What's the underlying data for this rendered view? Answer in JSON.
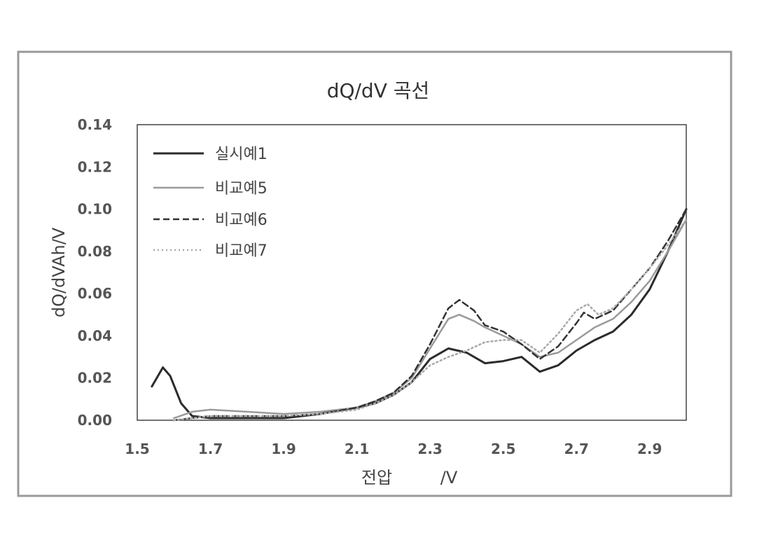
{
  "chart_data": {
    "type": "line",
    "title": "dQ/dV 곡선",
    "xlabel": "전압",
    "xunit": "/V",
    "ylabel": "dQ/dVAh/V",
    "xlim": [
      1.5,
      3.0
    ],
    "ylim": [
      0,
      0.14
    ],
    "xticks": [
      "1.5",
      "1.7",
      "1.9",
      "2.1",
      "2.3",
      "2.5",
      "2.7",
      "2.9"
    ],
    "yticks": [
      "0.00",
      "0.02",
      "0.04",
      "0.06",
      "0.08",
      "0.10",
      "0.12",
      "0.14"
    ],
    "grid": false,
    "legend_position": "top-left",
    "series": [
      {
        "name": "실시예1",
        "color": "#2b2b2b",
        "style": "solid",
        "x": [
          1.54,
          1.57,
          1.59,
          1.62,
          1.65,
          1.7,
          1.8,
          1.9,
          2.0,
          2.1,
          2.15,
          2.2,
          2.25,
          2.3,
          2.35,
          2.4,
          2.45,
          2.5,
          2.55,
          2.6,
          2.65,
          2.7,
          2.75,
          2.8,
          2.85,
          2.9,
          2.95,
          3.0
        ],
        "y": [
          0.016,
          0.025,
          0.021,
          0.008,
          0.002,
          0.001,
          0.001,
          0.001,
          0.003,
          0.006,
          0.008,
          0.012,
          0.018,
          0.029,
          0.034,
          0.032,
          0.027,
          0.028,
          0.03,
          0.023,
          0.026,
          0.033,
          0.038,
          0.042,
          0.05,
          0.062,
          0.08,
          0.1
        ]
      },
      {
        "name": "비교예5",
        "color": "#9a9a9a",
        "style": "solid",
        "x": [
          1.6,
          1.65,
          1.7,
          1.8,
          1.9,
          2.0,
          2.1,
          2.15,
          2.2,
          2.25,
          2.3,
          2.35,
          2.38,
          2.42,
          2.45,
          2.5,
          2.55,
          2.6,
          2.65,
          2.7,
          2.75,
          2.8,
          2.85,
          2.9,
          2.95,
          3.0
        ],
        "y": [
          0.001,
          0.004,
          0.005,
          0.004,
          0.003,
          0.004,
          0.006,
          0.009,
          0.013,
          0.02,
          0.034,
          0.048,
          0.05,
          0.047,
          0.044,
          0.04,
          0.036,
          0.03,
          0.032,
          0.038,
          0.044,
          0.048,
          0.056,
          0.066,
          0.08,
          0.095
        ]
      },
      {
        "name": "비교예6",
        "color": "#333333",
        "style": "dashed",
        "x": [
          1.6,
          1.65,
          1.7,
          1.8,
          1.9,
          2.0,
          2.1,
          2.15,
          2.2,
          2.25,
          2.3,
          2.35,
          2.38,
          2.42,
          2.45,
          2.5,
          2.55,
          2.6,
          2.65,
          2.7,
          2.72,
          2.75,
          2.8,
          2.85,
          2.9,
          2.95,
          3.0
        ],
        "y": [
          0.0,
          0.001,
          0.002,
          0.002,
          0.002,
          0.003,
          0.006,
          0.009,
          0.013,
          0.021,
          0.036,
          0.053,
          0.057,
          0.052,
          0.045,
          0.042,
          0.036,
          0.029,
          0.035,
          0.046,
          0.051,
          0.048,
          0.052,
          0.062,
          0.072,
          0.085,
          0.1
        ]
      },
      {
        "name": "비교예7",
        "color": "#a8a8a8",
        "style": "dotted",
        "x": [
          1.6,
          1.65,
          1.7,
          1.8,
          1.9,
          2.0,
          2.1,
          2.15,
          2.2,
          2.25,
          2.3,
          2.35,
          2.4,
          2.45,
          2.5,
          2.55,
          2.6,
          2.65,
          2.7,
          2.73,
          2.76,
          2.8,
          2.85,
          2.9,
          2.95,
          3.0
        ],
        "y": [
          0.0,
          0.001,
          0.002,
          0.002,
          0.002,
          0.003,
          0.005,
          0.008,
          0.012,
          0.018,
          0.026,
          0.03,
          0.033,
          0.037,
          0.038,
          0.038,
          0.032,
          0.041,
          0.052,
          0.055,
          0.05,
          0.053,
          0.062,
          0.072,
          0.083,
          0.095
        ]
      }
    ]
  }
}
